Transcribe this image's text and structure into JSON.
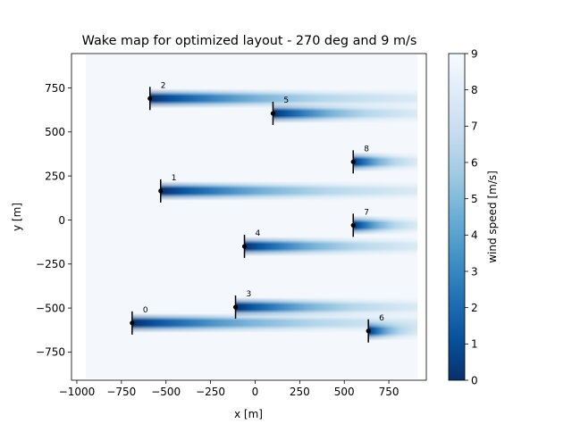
{
  "chart_data": {
    "type": "heatmap",
    "title": "Wake map for optimized layout -  270 deg and 9 m/s",
    "xlabel": "x [m]",
    "ylabel": "y [m]",
    "xlim": [
      -1030,
      960
    ],
    "ylim": [
      -910,
      945
    ],
    "field_extent": {
      "x": [
        -950,
        910
      ],
      "y": [
        -900,
        940
      ]
    },
    "x_ticks": [
      {
        "value": -1000,
        "label": "−1000"
      },
      {
        "value": -750,
        "label": "−750"
      },
      {
        "value": -500,
        "label": "−500"
      },
      {
        "value": -250,
        "label": "−250"
      },
      {
        "value": 0,
        "label": "0"
      },
      {
        "value": 250,
        "label": "250"
      },
      {
        "value": 500,
        "label": "500"
      },
      {
        "value": 750,
        "label": "750"
      }
    ],
    "y_ticks": [
      {
        "value": -750,
        "label": "−750"
      },
      {
        "value": -500,
        "label": "−500"
      },
      {
        "value": -250,
        "label": "−250"
      },
      {
        "value": 0,
        "label": "0"
      },
      {
        "value": 250,
        "label": "250"
      },
      {
        "value": 500,
        "label": "500"
      },
      {
        "value": 750,
        "label": "750"
      }
    ],
    "turbines": [
      {
        "label": "0",
        "x": -690,
        "y": -585
      },
      {
        "label": "1",
        "x": -530,
        "y": 165
      },
      {
        "label": "2",
        "x": -590,
        "y": 690
      },
      {
        "label": "3",
        "x": -110,
        "y": -495
      },
      {
        "label": "4",
        "x": -60,
        "y": -150
      },
      {
        "label": "5",
        "x": 100,
        "y": 605
      },
      {
        "label": "6",
        "x": 635,
        "y": -630
      },
      {
        "label": "7",
        "x": 550,
        "y": -30
      },
      {
        "label": "8",
        "x": 550,
        "y": 330
      }
    ],
    "colorbar": {
      "label": "wind speed [m/s]",
      "range": [
        0,
        9
      ],
      "ticks": [
        {
          "value": 0,
          "label": "0"
        },
        {
          "value": 1,
          "label": "1"
        },
        {
          "value": 2,
          "label": "2"
        },
        {
          "value": 3,
          "label": "3"
        },
        {
          "value": 4,
          "label": "4"
        },
        {
          "value": 5,
          "label": "5"
        },
        {
          "value": 6,
          "label": "6"
        },
        {
          "value": 7,
          "label": "7"
        },
        {
          "value": 8,
          "label": "8"
        },
        {
          "value": 9,
          "label": "9"
        }
      ],
      "colormap": "Blues_r",
      "colors": [
        "#08306b",
        "#08519c",
        "#2171b5",
        "#4292c6",
        "#6baed6",
        "#9ecae1",
        "#c6dbef",
        "#deebf7",
        "#f7fbff"
      ]
    },
    "free_stream_color": "#f4f8fd"
  }
}
